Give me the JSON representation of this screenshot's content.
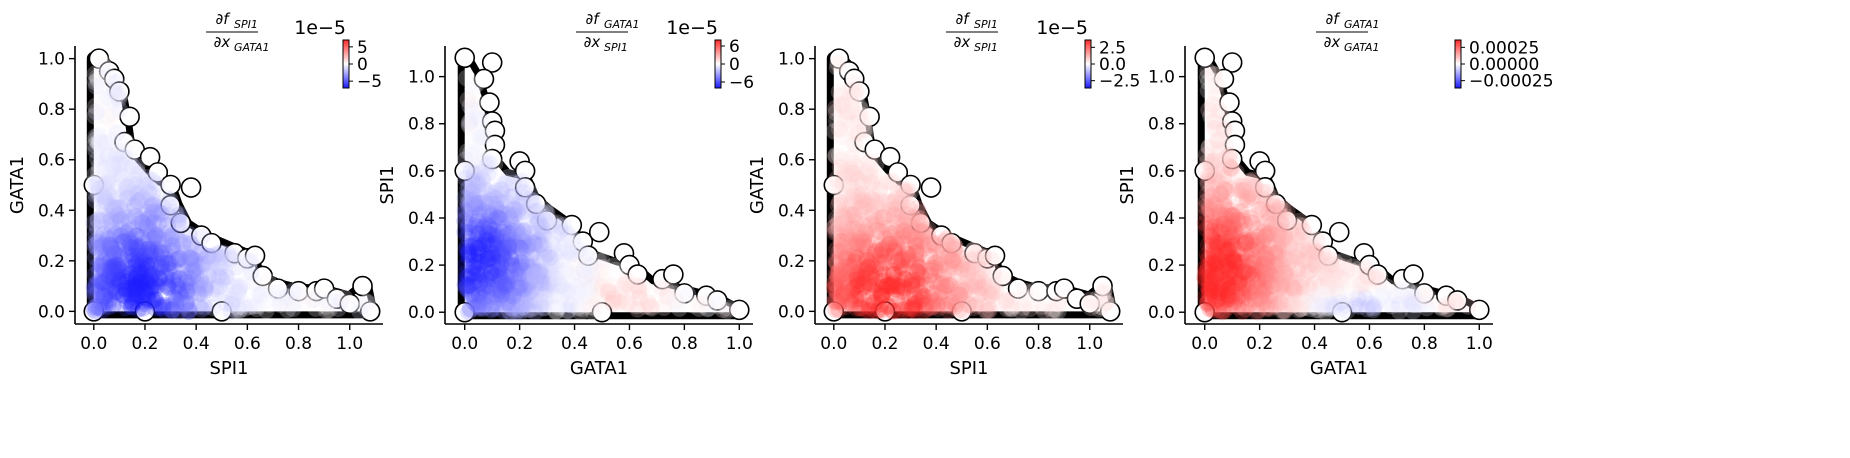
{
  "colors": {
    "positive": "#ff2a2a",
    "neutral": "#ffffff",
    "negative": "#1a1aff",
    "outline": "#000000"
  },
  "chart_data": [
    {
      "type": "scatter",
      "title": {
        "num_f": "∂f",
        "num_sub": "SPI1",
        "den_x": "∂x",
        "den_sub": "GATA1"
      },
      "xlabel": "SPI1",
      "ylabel": "GATA1",
      "xlim": [
        -0.05,
        1.13
      ],
      "ylim": [
        -0.05,
        1.05
      ],
      "xticks": [
        0.0,
        0.2,
        0.4,
        0.6,
        0.8,
        1.0
      ],
      "xtick_labels": [
        "0.0",
        "0.2",
        "0.4",
        "0.6",
        "0.8",
        "1.0"
      ],
      "yticks": [
        0.0,
        0.2,
        0.4,
        0.6,
        0.8,
        1.0
      ],
      "ytick_labels": [
        "0.0",
        "0.2",
        "0.4",
        "0.6",
        "0.8",
        "1.0"
      ],
      "colorbar": {
        "range": [
          -7,
          7
        ],
        "ticks": [
          5,
          0,
          -5
        ],
        "tick_labels": [
          "5",
          "0",
          "−5"
        ],
        "exponent_label": "1e−5"
      },
      "boundary": [
        [
          0.02,
          1.0
        ],
        [
          0.07,
          0.95
        ],
        [
          0.1,
          0.87
        ],
        [
          0.12,
          0.76
        ],
        [
          0.14,
          0.62
        ],
        [
          0.2,
          0.55
        ],
        [
          0.25,
          0.5
        ],
        [
          0.3,
          0.48
        ],
        [
          0.32,
          0.42
        ],
        [
          0.36,
          0.34
        ],
        [
          0.42,
          0.3
        ],
        [
          0.48,
          0.27
        ],
        [
          0.55,
          0.24
        ],
        [
          0.62,
          0.21
        ],
        [
          0.64,
          0.14
        ],
        [
          0.72,
          0.1
        ],
        [
          0.8,
          0.08
        ],
        [
          0.89,
          0.08
        ],
        [
          1.0,
          0.05
        ],
        [
          1.06,
          0.1
        ],
        [
          1.08,
          0.0
        ],
        [
          0.0,
          0.0
        ],
        [
          0.0,
          1.0
        ]
      ],
      "outline_points": [
        [
          0.02,
          1.0
        ],
        [
          0.06,
          0.95
        ],
        [
          0.08,
          0.92
        ],
        [
          0.1,
          0.87
        ],
        [
          0.14,
          0.77
        ],
        [
          0.12,
          0.67
        ],
        [
          0.16,
          0.64
        ],
        [
          0.22,
          0.61
        ],
        [
          0.25,
          0.55
        ],
        [
          0.3,
          0.5
        ],
        [
          0.38,
          0.49
        ],
        [
          0.3,
          0.42
        ],
        [
          0.34,
          0.35
        ],
        [
          0.42,
          0.3
        ],
        [
          0.46,
          0.27
        ],
        [
          0.55,
          0.23
        ],
        [
          0.6,
          0.21
        ],
        [
          0.63,
          0.22
        ],
        [
          0.66,
          0.14
        ],
        [
          0.72,
          0.09
        ],
        [
          0.8,
          0.08
        ],
        [
          0.87,
          0.08
        ],
        [
          0.9,
          0.09
        ],
        [
          0.95,
          0.05
        ],
        [
          1.0,
          0.03
        ],
        [
          1.05,
          0.1
        ],
        [
          1.08,
          0.0
        ],
        [
          0.5,
          0.0
        ],
        [
          0.2,
          0.0
        ],
        [
          0.0,
          0.0
        ],
        [
          0.0,
          0.5
        ]
      ],
      "field": {
        "cx": 0.18,
        "cy": 0.08,
        "sx": 0.18,
        "sy": 0.22,
        "amp": -1.0,
        "base": -0.05
      }
    },
    {
      "type": "scatter",
      "title": {
        "num_f": "∂f",
        "num_sub": "GATA1",
        "den_x": "∂x",
        "den_sub": "SPI1"
      },
      "xlabel": "GATA1",
      "ylabel": "SPI1",
      "xlim": [
        -0.05,
        1.05
      ],
      "ylim": [
        -0.05,
        1.13
      ],
      "xticks": [
        0.0,
        0.2,
        0.4,
        0.6,
        0.8,
        1.0
      ],
      "xtick_labels": [
        "0.0",
        "0.2",
        "0.4",
        "0.6",
        "0.8",
        "1.0"
      ],
      "yticks": [
        0.0,
        0.2,
        0.4,
        0.6,
        0.8,
        1.0
      ],
      "ytick_labels": [
        "0.0",
        "0.2",
        "0.4",
        "0.6",
        "0.8",
        "1.0"
      ],
      "colorbar": {
        "range": [
          -8,
          8
        ],
        "ticks": [
          6,
          0,
          -6
        ],
        "tick_labels": [
          "6",
          "0",
          "−6"
        ],
        "exponent_label": "1e−5"
      },
      "boundary": [
        [
          0.0,
          1.08
        ],
        [
          0.04,
          1.0
        ],
        [
          0.07,
          0.88
        ],
        [
          0.08,
          0.76
        ],
        [
          0.1,
          0.65
        ],
        [
          0.15,
          0.58
        ],
        [
          0.22,
          0.56
        ],
        [
          0.25,
          0.48
        ],
        [
          0.3,
          0.43
        ],
        [
          0.36,
          0.38
        ],
        [
          0.42,
          0.3
        ],
        [
          0.45,
          0.24
        ],
        [
          0.55,
          0.2
        ],
        [
          0.62,
          0.18
        ],
        [
          0.68,
          0.12
        ],
        [
          0.75,
          0.1
        ],
        [
          0.85,
          0.07
        ],
        [
          0.92,
          0.05
        ],
        [
          1.0,
          0.0
        ],
        [
          0.0,
          0.0
        ]
      ],
      "outline_points": [
        [
          0.0,
          1.08
        ],
        [
          0.1,
          1.06
        ],
        [
          0.07,
          0.99
        ],
        [
          0.09,
          0.89
        ],
        [
          0.1,
          0.81
        ],
        [
          0.11,
          0.77
        ],
        [
          0.11,
          0.71
        ],
        [
          0.1,
          0.65
        ],
        [
          0.2,
          0.64
        ],
        [
          0.22,
          0.6
        ],
        [
          0.22,
          0.53
        ],
        [
          0.26,
          0.46
        ],
        [
          0.3,
          0.39
        ],
        [
          0.39,
          0.37
        ],
        [
          0.43,
          0.3
        ],
        [
          0.45,
          0.24
        ],
        [
          0.49,
          0.34
        ],
        [
          0.58,
          0.25
        ],
        [
          0.6,
          0.2
        ],
        [
          0.63,
          0.16
        ],
        [
          0.72,
          0.14
        ],
        [
          0.76,
          0.16
        ],
        [
          0.8,
          0.08
        ],
        [
          0.88,
          0.07
        ],
        [
          0.92,
          0.05
        ],
        [
          1.0,
          0.01
        ],
        [
          0.5,
          0.0
        ],
        [
          0.0,
          0.0
        ],
        [
          0.0,
          0.6
        ]
      ],
      "field": {
        "cx": 0.04,
        "cy": 0.22,
        "sx": 0.16,
        "sy": 0.2,
        "amp": -1.0,
        "base": 0.0,
        "pos_cx": 0.6,
        "pos_cy": 0.06,
        "pos_amp": 0.25
      }
    },
    {
      "type": "scatter",
      "title": {
        "num_f": "∂f",
        "num_sub": "SPI1",
        "den_x": "∂x",
        "den_sub": "SPI1"
      },
      "xlabel": "SPI1",
      "ylabel": "GATA1",
      "xlim": [
        -0.05,
        1.13
      ],
      "ylim": [
        -0.05,
        1.05
      ],
      "xticks": [
        0.0,
        0.2,
        0.4,
        0.6,
        0.8,
        1.0
      ],
      "xtick_labels": [
        "0.0",
        "0.2",
        "0.4",
        "0.6",
        "0.8",
        "1.0"
      ],
      "yticks": [
        0.0,
        0.2,
        0.4,
        0.6,
        0.8,
        1.0
      ],
      "ytick_labels": [
        "0.0",
        "0.2",
        "0.4",
        "0.6",
        "0.8",
        "1.0"
      ],
      "colorbar": {
        "range": [
          -3.6,
          3.6
        ],
        "ticks": [
          2.5,
          0.0,
          -2.5
        ],
        "tick_labels": [
          "2.5",
          "0.0",
          "−2.5"
        ],
        "exponent_label": "1e−5"
      },
      "boundary": [
        [
          0.02,
          1.0
        ],
        [
          0.07,
          0.95
        ],
        [
          0.1,
          0.87
        ],
        [
          0.12,
          0.76
        ],
        [
          0.14,
          0.62
        ],
        [
          0.2,
          0.55
        ],
        [
          0.25,
          0.5
        ],
        [
          0.3,
          0.48
        ],
        [
          0.32,
          0.42
        ],
        [
          0.36,
          0.34
        ],
        [
          0.42,
          0.3
        ],
        [
          0.48,
          0.27
        ],
        [
          0.55,
          0.24
        ],
        [
          0.62,
          0.21
        ],
        [
          0.64,
          0.14
        ],
        [
          0.72,
          0.1
        ],
        [
          0.8,
          0.08
        ],
        [
          0.89,
          0.08
        ],
        [
          1.0,
          0.05
        ],
        [
          1.06,
          0.1
        ],
        [
          1.08,
          0.0
        ],
        [
          0.0,
          0.0
        ],
        [
          0.0,
          1.0
        ]
      ],
      "outline_points": [
        [
          0.02,
          1.0
        ],
        [
          0.06,
          0.95
        ],
        [
          0.08,
          0.92
        ],
        [
          0.1,
          0.87
        ],
        [
          0.14,
          0.77
        ],
        [
          0.12,
          0.67
        ],
        [
          0.16,
          0.64
        ],
        [
          0.22,
          0.61
        ],
        [
          0.25,
          0.55
        ],
        [
          0.3,
          0.5
        ],
        [
          0.38,
          0.49
        ],
        [
          0.3,
          0.42
        ],
        [
          0.34,
          0.35
        ],
        [
          0.42,
          0.3
        ],
        [
          0.46,
          0.27
        ],
        [
          0.55,
          0.23
        ],
        [
          0.6,
          0.21
        ],
        [
          0.63,
          0.22
        ],
        [
          0.66,
          0.14
        ],
        [
          0.72,
          0.09
        ],
        [
          0.8,
          0.08
        ],
        [
          0.87,
          0.08
        ],
        [
          0.9,
          0.09
        ],
        [
          0.95,
          0.05
        ],
        [
          1.0,
          0.03
        ],
        [
          1.05,
          0.1
        ],
        [
          1.08,
          0.0
        ],
        [
          0.5,
          0.0
        ],
        [
          0.2,
          0.0
        ],
        [
          0.0,
          0.0
        ],
        [
          0.0,
          0.5
        ]
      ],
      "field": {
        "cx": 0.2,
        "cy": 0.06,
        "sx": 0.2,
        "sy": 0.2,
        "amp": 1.0,
        "base": 0.12
      }
    },
    {
      "type": "scatter",
      "title": {
        "num_f": "∂f",
        "num_sub": "GATA1",
        "den_x": "∂x",
        "den_sub": "GATA1"
      },
      "xlabel": "GATA1",
      "ylabel": "SPI1",
      "xlim": [
        -0.05,
        1.05
      ],
      "ylim": [
        -0.05,
        1.13
      ],
      "xticks": [
        0.0,
        0.2,
        0.4,
        0.6,
        0.8,
        1.0
      ],
      "xtick_labels": [
        "0.0",
        "0.2",
        "0.4",
        "0.6",
        "0.8",
        "1.0"
      ],
      "yticks": [
        0.0,
        0.2,
        0.4,
        0.6,
        0.8,
        1.0
      ],
      "ytick_labels": [
        "0.0",
        "0.2",
        "0.4",
        "0.6",
        "0.8",
        "1.0"
      ],
      "colorbar": {
        "range": [
          -0.00036,
          0.00036
        ],
        "ticks": [
          0.00025,
          0.0,
          -0.00025
        ],
        "tick_labels": [
          "0.00025",
          "0.00000",
          "−0.00025"
        ],
        "exponent_label": ""
      },
      "boundary": [
        [
          0.0,
          1.08
        ],
        [
          0.04,
          1.0
        ],
        [
          0.07,
          0.88
        ],
        [
          0.08,
          0.76
        ],
        [
          0.1,
          0.65
        ],
        [
          0.15,
          0.58
        ],
        [
          0.22,
          0.56
        ],
        [
          0.25,
          0.48
        ],
        [
          0.3,
          0.43
        ],
        [
          0.36,
          0.38
        ],
        [
          0.42,
          0.3
        ],
        [
          0.45,
          0.24
        ],
        [
          0.55,
          0.2
        ],
        [
          0.62,
          0.18
        ],
        [
          0.68,
          0.12
        ],
        [
          0.75,
          0.1
        ],
        [
          0.85,
          0.07
        ],
        [
          0.92,
          0.05
        ],
        [
          1.0,
          0.0
        ],
        [
          0.0,
          0.0
        ]
      ],
      "outline_points": [
        [
          0.0,
          1.08
        ],
        [
          0.1,
          1.06
        ],
        [
          0.07,
          0.99
        ],
        [
          0.09,
          0.89
        ],
        [
          0.1,
          0.81
        ],
        [
          0.11,
          0.77
        ],
        [
          0.11,
          0.71
        ],
        [
          0.1,
          0.65
        ],
        [
          0.2,
          0.64
        ],
        [
          0.22,
          0.6
        ],
        [
          0.22,
          0.53
        ],
        [
          0.26,
          0.46
        ],
        [
          0.3,
          0.39
        ],
        [
          0.39,
          0.37
        ],
        [
          0.43,
          0.3
        ],
        [
          0.45,
          0.24
        ],
        [
          0.49,
          0.34
        ],
        [
          0.58,
          0.25
        ],
        [
          0.6,
          0.2
        ],
        [
          0.63,
          0.16
        ],
        [
          0.72,
          0.14
        ],
        [
          0.76,
          0.16
        ],
        [
          0.8,
          0.08
        ],
        [
          0.88,
          0.07
        ],
        [
          0.92,
          0.05
        ],
        [
          1.0,
          0.01
        ],
        [
          0.5,
          0.0
        ],
        [
          0.0,
          0.0
        ],
        [
          0.0,
          0.6
        ]
      ],
      "field": {
        "cx": 0.03,
        "cy": 0.18,
        "sx": 0.16,
        "sy": 0.22,
        "amp": 1.0,
        "base": 0.15,
        "neg_cx": 0.6,
        "neg_cy": 0.03,
        "neg_amp": -0.45
      }
    }
  ]
}
